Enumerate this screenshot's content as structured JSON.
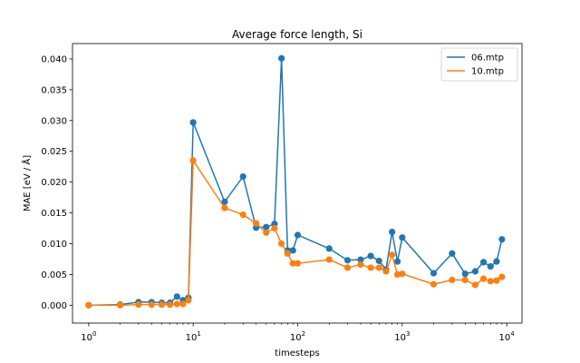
{
  "chart_data": {
    "type": "line",
    "title": "Average force length, Si",
    "xlabel": "timesteps",
    "ylabel": "MAE [eV / Å]",
    "xscale": "log",
    "xlim": [
      0.7,
      14000
    ],
    "ylim": [
      -0.0029,
      0.0425
    ],
    "grid": false,
    "legend_position": "top-right",
    "x_ticks": [
      {
        "value": 1,
        "base": "10",
        "exp": "0"
      },
      {
        "value": 10,
        "base": "10",
        "exp": "1"
      },
      {
        "value": 100,
        "base": "10",
        "exp": "2"
      },
      {
        "value": 1000,
        "base": "10",
        "exp": "3"
      },
      {
        "value": 10000,
        "base": "10",
        "exp": "4"
      }
    ],
    "y_ticks": [
      {
        "value": 0.0,
        "label": "0.000"
      },
      {
        "value": 0.005,
        "label": "0.005"
      },
      {
        "value": 0.01,
        "label": "0.010"
      },
      {
        "value": 0.015,
        "label": "0.015"
      },
      {
        "value": 0.02,
        "label": "0.020"
      },
      {
        "value": 0.025,
        "label": "0.025"
      },
      {
        "value": 0.03,
        "label": "0.030"
      },
      {
        "value": 0.035,
        "label": "0.035"
      },
      {
        "value": 0.04,
        "label": "0.040"
      }
    ],
    "x": [
      1,
      2,
      3,
      4,
      5,
      6,
      7,
      8,
      9,
      10,
      20,
      30,
      40,
      50,
      60,
      70,
      80,
      90,
      100,
      200,
      300,
      400,
      500,
      600,
      700,
      800,
      900,
      1000,
      2000,
      3000,
      4000,
      5000,
      6000,
      7000,
      8000,
      9000
    ],
    "series": [
      {
        "name": "06.mtp",
        "color": "#1f77b4",
        "values": [
          0.0,
          0.0001,
          0.0005,
          0.0005,
          0.0004,
          0.0004,
          0.0014,
          0.0008,
          0.0012,
          0.0297,
          0.0168,
          0.0209,
          0.0126,
          0.0127,
          0.0132,
          0.0401,
          0.0089,
          0.0089,
          0.0114,
          0.0092,
          0.0073,
          0.0074,
          0.008,
          0.0072,
          0.0058,
          0.0119,
          0.0071,
          0.011,
          0.0052,
          0.0084,
          0.0051,
          0.0055,
          0.007,
          0.0063,
          0.0071,
          0.0107
        ]
      },
      {
        "name": "10.mtp",
        "color": "#ff7f0e",
        "values": [
          0.0,
          0.0,
          0.0001,
          0.0001,
          0.0001,
          0.0001,
          0.0002,
          0.0002,
          0.0008,
          0.0235,
          0.0158,
          0.0147,
          0.0133,
          0.0118,
          0.0125,
          0.01,
          0.0084,
          0.0068,
          0.0068,
          0.0074,
          0.0061,
          0.0066,
          0.0061,
          0.0061,
          0.0055,
          0.0082,
          0.005,
          0.0051,
          0.0034,
          0.0041,
          0.0041,
          0.0033,
          0.0043,
          0.0039,
          0.004,
          0.0046
        ]
      }
    ]
  }
}
